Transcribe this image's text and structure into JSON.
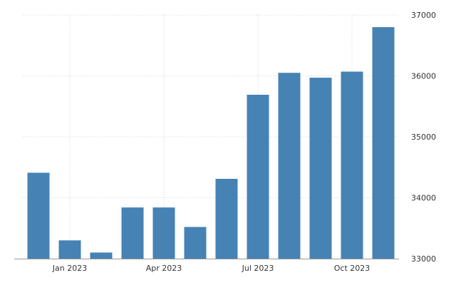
{
  "chart_data": {
    "type": "bar",
    "categories": [
      "Dec 2022",
      "Jan 2023",
      "Feb 2023",
      "Mar 2023",
      "Apr 2023",
      "May 2023",
      "Jun 2023",
      "Jul 2023",
      "Aug 2023",
      "Sep 2023",
      "Oct 2023",
      "Nov 2023"
    ],
    "values": [
      34410,
      33300,
      33100,
      33840,
      33840,
      33520,
      34310,
      35690,
      36050,
      35970,
      36070,
      36800
    ],
    "title": "",
    "xlabel": "",
    "ylabel": "",
    "ylim": [
      33000,
      37000
    ],
    "y_ticks": [
      "33000",
      "34000",
      "35000",
      "36000",
      "37000"
    ],
    "x_tick_labels": [
      {
        "category": "Jan 2023",
        "label": "Jan 2023"
      },
      {
        "category": "Apr 2023",
        "label": "Apr 2023"
      },
      {
        "category": "Jul 2023",
        "label": "Jul 2023"
      },
      {
        "category": "Oct 2023",
        "label": "Oct 2023"
      }
    ],
    "y_axis_position": "right",
    "grid": true,
    "legend": "none",
    "bar_color": "#4682b4"
  }
}
